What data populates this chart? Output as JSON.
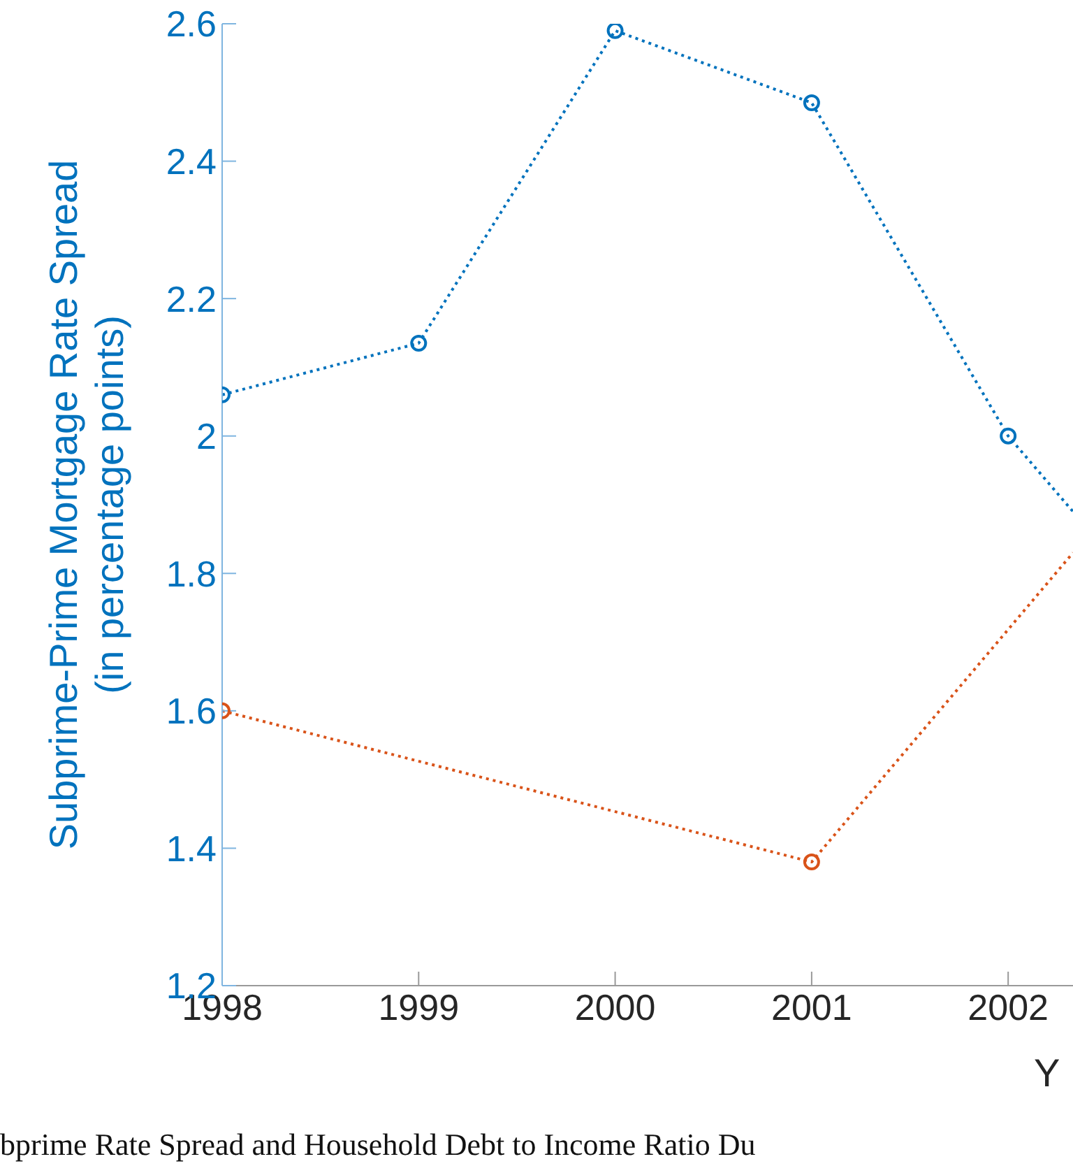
{
  "chart_data": {
    "type": "line",
    "xlabel": "Y",
    "ylabel": "Subprime-Prime Mortgage Rate Spread\n(in percentage points)",
    "annotations": [
      "bprime Rate Spread and Household Debt to Income Ratio Du"
    ],
    "xlim": [
      1998,
      2002.33
    ],
    "xticks": [
      1998,
      1999,
      2000,
      2001,
      2002
    ],
    "ylim": [
      1.2,
      2.6
    ],
    "yticks": [
      1.2,
      1.4,
      1.6,
      1.8,
      2,
      2.2,
      2.4,
      2.6
    ],
    "grid": false,
    "legend": false,
    "marker": "circle",
    "line_style": "dotted",
    "series": [
      {
        "color": "#0072bd",
        "x": [
          1998,
          1999,
          2000,
          2001,
          2002,
          2002.33
        ],
        "values": [
          2.06,
          2.135,
          2.59,
          2.485,
          2.0,
          1.89
        ]
      },
      {
        "color": "#d95319",
        "x": [
          1998,
          2001,
          2002.33
        ],
        "values": [
          1.6,
          1.38,
          1.83
        ]
      }
    ]
  }
}
